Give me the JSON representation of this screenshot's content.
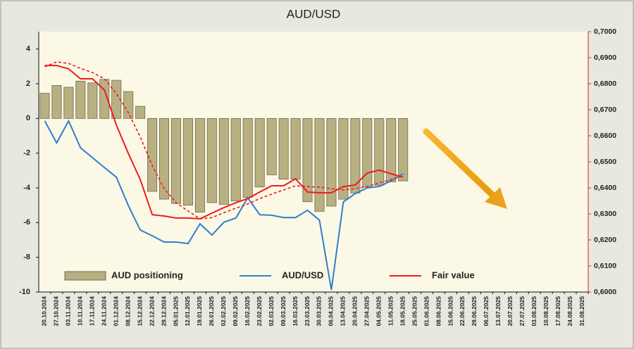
{
  "chart_data": {
    "type": "bar-line",
    "title": "AUD/USD",
    "categories": [
      "20.10.2024",
      "27.10.2024",
      "03.11.2024",
      "10.11.2024",
      "17.11.2024",
      "24.11.2024",
      "01.12.2024",
      "08.12.2024",
      "15.12.2024",
      "22.12.2024",
      "29.12.2024",
      "05.01.2025",
      "12.01.2025",
      "19.01.2025",
      "26.01.2025",
      "02.02.2025",
      "09.02.2025",
      "16.02.2025",
      "23.02.2025",
      "02.03.2025",
      "09.03.2025",
      "16.03.2025",
      "23.03.2025",
      "30.03.2025",
      "06.04.2025",
      "13.04.2025",
      "20.04.2025",
      "27.04.2025",
      "04.05.2025",
      "11.05.2025",
      "18.05.2025",
      "25.05.2025",
      "01.06.2025",
      "08.06.2025",
      "15.06.2025",
      "22.06.2025",
      "29.06.2025",
      "06.07.2025",
      "13.07.2025",
      "20.07.2025",
      "27.07.2025",
      "03.08.2025",
      "10.08.2025",
      "17.08.2025",
      "24.08.2025",
      "31.08.2025"
    ],
    "series": [
      {
        "name": "AUD positioning",
        "type": "bar",
        "color": "#b8b083",
        "values": [
          1.45,
          1.9,
          1.8,
          2.15,
          2.05,
          2.25,
          2.2,
          1.55,
          0.7,
          -4.2,
          -4.65,
          -4.9,
          -5.0,
          -5.4,
          -4.85,
          -4.95,
          -4.75,
          -4.55,
          -3.95,
          -3.25,
          -3.5,
          -3.5,
          -4.8,
          -5.35,
          -5.05,
          -4.65,
          -4.3,
          -3.95,
          -3.85,
          -3.65,
          -3.6,
          null,
          null,
          null,
          null,
          null,
          null,
          null,
          null,
          null,
          null,
          null,
          null,
          null,
          null,
          null
        ]
      },
      {
        "name": "AUD/USD",
        "type": "line",
        "axis": "y2",
        "color": "#2f7fcc",
        "values": [
          0.6657,
          0.6573,
          0.6657,
          0.6554,
          0.6516,
          0.6478,
          0.6441,
          0.6332,
          0.6238,
          0.6216,
          0.6192,
          0.6192,
          0.6186,
          0.6262,
          0.6219,
          0.6268,
          0.6284,
          0.6362,
          0.6297,
          0.6295,
          0.6286,
          0.6286,
          0.6314,
          0.6276,
          0.6008,
          0.6346,
          0.6378,
          0.64,
          0.6405,
          0.6427,
          0.6454,
          null,
          null,
          null,
          null,
          null,
          null,
          null,
          null,
          null,
          null,
          null,
          null,
          null,
          null,
          null
        ]
      },
      {
        "name": "Fair value",
        "type": "line",
        "axis": "y2",
        "color": "#ee1c1c",
        "values": [
          0.687,
          0.687,
          0.6857,
          0.6819,
          0.6819,
          0.6776,
          0.6641,
          0.6532,
          0.6432,
          0.6297,
          0.6292,
          0.6284,
          0.6284,
          0.6281,
          0.6303,
          0.6324,
          0.6343,
          0.6359,
          0.6384,
          0.6408,
          0.6408,
          0.6435,
          0.6384,
          0.6381,
          0.6381,
          0.6405,
          0.6411,
          0.6457,
          0.6468,
          0.6454,
          0.6441,
          null,
          null,
          null,
          null,
          null,
          null,
          null,
          null,
          null,
          null,
          null,
          null,
          null,
          null,
          null
        ]
      },
      {
        "type": "line",
        "axis": "y2",
        "color": "#ee1c1c",
        "dashed": true,
        "values": [
          0.6865,
          0.6884,
          0.6878,
          0.6859,
          0.6843,
          0.6819,
          0.6762,
          0.6689,
          0.6595,
          0.6486,
          0.6397,
          0.6343,
          0.6311,
          0.6281,
          0.6286,
          0.6305,
          0.6322,
          0.6338,
          0.6359,
          0.6376,
          0.6392,
          0.6408,
          0.6405,
          0.6403,
          0.6397,
          0.6392,
          0.6397,
          0.6405,
          0.6419,
          0.6432,
          0.6446,
          null,
          null,
          null,
          null,
          null,
          null,
          null,
          null,
          null,
          null,
          null,
          null,
          null,
          null,
          null
        ]
      }
    ],
    "ylim": [
      -10,
      5
    ],
    "yticks": [
      -10,
      -8,
      -6,
      -4,
      -2,
      0,
      2,
      4
    ],
    "y2lim": [
      0.6,
      0.7
    ],
    "y2ticks": [
      {
        "value": 0.6,
        "label": "0,6000"
      },
      {
        "value": 0.61,
        "label": "0,6100"
      },
      {
        "value": 0.62,
        "label": "0,6200"
      },
      {
        "value": 0.63,
        "label": "0,6300"
      },
      {
        "value": 0.64,
        "label": "0,6400"
      },
      {
        "value": 0.65,
        "label": "0,6500"
      },
      {
        "value": 0.66,
        "label": "0,6600"
      },
      {
        "value": 0.67,
        "label": "0,6700"
      },
      {
        "value": 0.68,
        "label": "0,6800"
      },
      {
        "value": 0.69,
        "label": "0,6900"
      },
      {
        "value": 0.7,
        "label": "0,7000"
      }
    ],
    "legend": "bottom",
    "grid": false
  }
}
